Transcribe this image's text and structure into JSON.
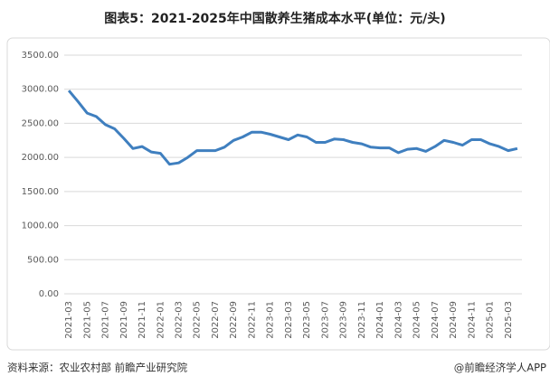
{
  "chart_data": {
    "type": "line",
    "title": "图表5：2021-2025年中国散养生猪成本水平(单位：元/头)",
    "categories": [
      "2021-03",
      null,
      "2021-05",
      null,
      "2021-07",
      null,
      "2021-09",
      null,
      "2021-11",
      null,
      "2022-01",
      null,
      "2022-03",
      null,
      "2022-05",
      null,
      "2022-07",
      null,
      "2022-09",
      null,
      "2022-11",
      null,
      "2023-01",
      null,
      "2023-03",
      null,
      "2023-05",
      null,
      "2023-07",
      null,
      "2023-09",
      null,
      "2023-11",
      null,
      "2024-01",
      null,
      "2024-03",
      null,
      "2024-05",
      null,
      "2024-07",
      null,
      "2024-09",
      null,
      "2024-11",
      null,
      "2025-01",
      null,
      "2025-03",
      null
    ],
    "values": [
      2980,
      2820,
      2650,
      2600,
      2480,
      2420,
      2280,
      2130,
      2160,
      2080,
      2060,
      1900,
      1920,
      2000,
      2100,
      2100,
      2100,
      2150,
      2250,
      2300,
      2370,
      2370,
      2340,
      2300,
      2260,
      2330,
      2300,
      2220,
      2220,
      2270,
      2260,
      2220,
      2200,
      2150,
      2140,
      2140,
      2070,
      2120,
      2130,
      2090,
      2160,
      2250,
      2220,
      2180,
      2260,
      2260,
      2200,
      2160,
      2100,
      2130
    ],
    "color": "#3f7fbf",
    "ylim": [
      0,
      3500
    ],
    "yticks": [
      {
        "value": 0,
        "label": "0.00"
      },
      {
        "value": 500,
        "label": "500.00"
      },
      {
        "value": 1000,
        "label": "1000.00"
      },
      {
        "value": 1500,
        "label": "1500.00"
      },
      {
        "value": 2000,
        "label": "2000.00"
      },
      {
        "value": 2500,
        "label": "2500.00"
      },
      {
        "value": 3000,
        "label": "3000.00"
      },
      {
        "value": 3500,
        "label": "3500.00"
      }
    ],
    "grid": true,
    "source": "资料来源：农业农村部 前瞻产业研究院",
    "credit": "@前瞻经济学人APP"
  }
}
